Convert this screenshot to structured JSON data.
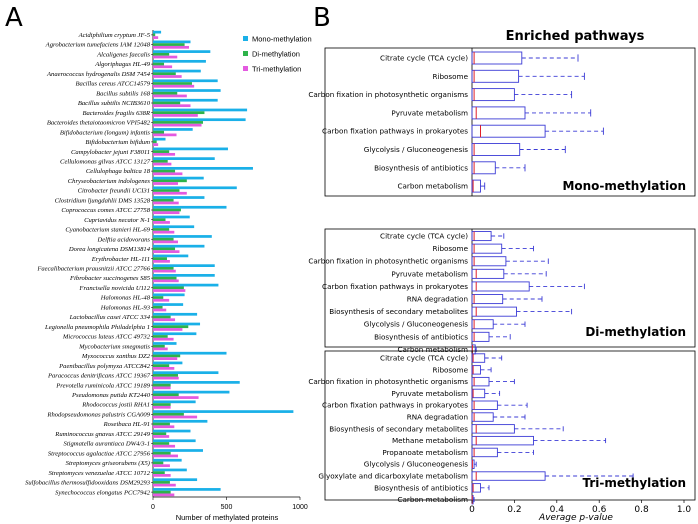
{
  "panel_a_letter": "A",
  "panel_b_letter": "B",
  "colors": {
    "mono": "#1ab0e8",
    "di": "#2eb34a",
    "tri": "#e35ae0",
    "box": "#3b3bd6",
    "median": "#e0202a"
  },
  "chart_data": [
    {
      "type": "bar",
      "orientation": "horizontal",
      "xlabel": "Number of methylated proteins",
      "xlim": [
        0,
        1000
      ],
      "xticks": [
        0,
        500,
        1000
      ],
      "legend": [
        "Mono-methylation",
        "Di-methylation",
        "Tri-methylation"
      ],
      "legend_position": "top-right",
      "categories": [
        "Acidiphilium cryptum JF-5",
        "Agrobacterium tumefaciens IAM 12048",
        "Alcaligenes faecalis",
        "Algoriphagus HL-49",
        "Anaerococcus hydrogenalis DSM 7454",
        "Bacillus cereus ATCC14579",
        "Bacillus subtilis 168",
        "Bacillus subtilis NCIB3610",
        "Bacteroides fragilis 638R",
        "Bacteroides thetaiotaomicron VPI5482",
        "Bifidobacterium (longum) infantis",
        "Bifidobacterium bifidum",
        "Campylobacter jejuni F38011",
        "Cellulomonas gilvus ATCC 13127",
        "Cellulophaga baltica 18",
        "Chryseobacterium indologenes",
        "Citrobacter freundii UCI31",
        "Clostridium ljungdahlii DMS 13528",
        "Coprococcus comes ATCC 27758",
        "Cupriavidus necator N-1",
        "Cyanobacterium stanieri HL-69",
        "Delftia acidovorans",
        "Dorea longicatena DSM13814",
        "Erythrobacter HL-111",
        "Faecalibacterium prausnitzii ATCC 27766",
        "Fibrobacter succinogenes S85",
        "Francisella novicida U112",
        "Halomonas HL-48",
        "Halomonas HL-93",
        "Lactobacillus casei ATCC 334",
        "Legionella pneumophila Philadelphia 1",
        "Micrococcus luteus ATCC 49732",
        "Mycobacterium smegmatis",
        "Myxococcus xanthus DZ2",
        "Paenibacillus polymyxa ATCC842",
        "Paracoccus denitrificans ATCC 19367",
        "Prevotella ruminicola ATCC 19189",
        "Pseudomonas putida KT2440",
        "Rhodococcus jostii RHA1",
        "Rhodopseudomonas palustris CGA009",
        "Roseibaca HL-91",
        "Ruminococcus gnavus ATCC 29149",
        "Stigmatella aurantiaca DW4/3-1",
        "Streptococcus agalactiae ATCC 27956",
        "Streptomyces griseorubens (X5)",
        "Streptomyces venezuelae ATCC 10712",
        "Sulfobacillus thermosulfidooxidans DSM29293",
        "Synechococcus elongatus PCC7942"
      ],
      "series": [
        {
          "name": "Mono-methylation",
          "values": [
            55,
            255,
            390,
            360,
            325,
            440,
            460,
            440,
            640,
            630,
            270,
            85,
            510,
            420,
            680,
            345,
            570,
            350,
            500,
            250,
            280,
            400,
            350,
            240,
            420,
            420,
            445,
            215,
            205,
            300,
            320,
            295,
            160,
            500,
            200,
            445,
            590,
            520,
            290,
            955,
            370,
            255,
            290,
            340,
            195,
            230,
            300,
            460
          ]
        },
        {
          "name": "Di-methylation",
          "values": [
            15,
            215,
            110,
            75,
            155,
            265,
            165,
            185,
            350,
            340,
            75,
            25,
            110,
            100,
            150,
            230,
            180,
            140,
            190,
            85,
            110,
            140,
            150,
            95,
            140,
            160,
            210,
            70,
            65,
            120,
            240,
            100,
            80,
            185,
            110,
            170,
            120,
            175,
            120,
            210,
            115,
            90,
            110,
            120,
            70,
            80,
            115,
            120
          ]
        },
        {
          "name": "Tri-methylation",
          "values": [
            35,
            245,
            165,
            130,
            195,
            280,
            230,
            255,
            305,
            330,
            160,
            35,
            150,
            125,
            200,
            170,
            230,
            175,
            180,
            115,
            145,
            170,
            180,
            115,
            155,
            175,
            220,
            110,
            90,
            150,
            200,
            140,
            100,
            165,
            145,
            175,
            120,
            310,
            120,
            300,
            145,
            110,
            150,
            170,
            115,
            120,
            155,
            145
          ]
        }
      ]
    },
    {
      "type": "boxplot",
      "title": "Enriched pathways",
      "xlabel": "Average p-value",
      "xlim": [
        0,
        1
      ],
      "xticks": [
        "0",
        "0.2",
        "0.4",
        "0.6",
        "0.8",
        "1.0"
      ],
      "groups": [
        {
          "name": "Mono-methylation",
          "pathways": [
            {
              "label": "Citrate cycle (TCA cycle)",
              "median": 0.01,
              "q1": 0,
              "q3": 0.235,
              "whisker_high": 0.5
            },
            {
              "label": "Ribosome",
              "median": 0.01,
              "q1": 0,
              "q3": 0.22,
              "whisker_high": 0.53
            },
            {
              "label": "Carbon fixation in photosynthetic organisms",
              "median": 0.01,
              "q1": 0,
              "q3": 0.2,
              "whisker_high": 0.47
            },
            {
              "label": "Pyruvate metabolism",
              "median": 0.02,
              "q1": 0,
              "q3": 0.25,
              "whisker_high": 0.56
            },
            {
              "label": "Carbon fixation pathways in prokaryotes",
              "median": 0.04,
              "q1": 0,
              "q3": 0.345,
              "whisker_high": 0.62
            },
            {
              "label": "Glycolysis / Gluconeogenesis",
              "median": 0.01,
              "q1": 0,
              "q3": 0.225,
              "whisker_high": 0.44
            },
            {
              "label": "Biosynthesis of antibiotics",
              "median": 0.01,
              "q1": 0,
              "q3": 0.11,
              "whisker_high": 0.25
            },
            {
              "label": "Carbon metabolism",
              "median": 0.005,
              "q1": 0,
              "q3": 0.04,
              "whisker_high": 0.06
            }
          ]
        },
        {
          "name": "Di-methylation",
          "pathways": [
            {
              "label": "Citrate cycle (TCA cycle)",
              "median": 0.01,
              "q1": 0,
              "q3": 0.09,
              "whisker_high": 0.15
            },
            {
              "label": "Ribosome",
              "median": 0.01,
              "q1": 0,
              "q3": 0.14,
              "whisker_high": 0.29
            },
            {
              "label": "Carbon fixation in photosynthetic organisms",
              "median": 0.01,
              "q1": 0,
              "q3": 0.16,
              "whisker_high": 0.36
            },
            {
              "label": "Pyruvate metabolism",
              "median": 0.02,
              "q1": 0,
              "q3": 0.15,
              "whisker_high": 0.35
            },
            {
              "label": "Carbon fixation pathways in prokaryotes",
              "median": 0.02,
              "q1": 0,
              "q3": 0.27,
              "whisker_high": 0.53
            },
            {
              "label": "RNA degradation",
              "median": 0.01,
              "q1": 0,
              "q3": 0.145,
              "whisker_high": 0.33
            },
            {
              "label": "Biosynthesis of secondary metabolites",
              "median": 0.02,
              "q1": 0,
              "q3": 0.21,
              "whisker_high": 0.47
            },
            {
              "label": "Glycolysis / Gluconeogenesis",
              "median": 0.01,
              "q1": 0,
              "q3": 0.1,
              "whisker_high": 0.25
            },
            {
              "label": "Biosynthesis of antibiotics",
              "median": 0.01,
              "q1": 0,
              "q3": 0.08,
              "whisker_high": 0.18
            },
            {
              "label": "Carbon metabolism",
              "median": 0.002,
              "q1": 0,
              "q3": 0.015,
              "whisker_high": 0.02
            }
          ]
        },
        {
          "name": "Tri-methylation",
          "pathways": [
            {
              "label": "Citrate cycle (TCA cycle)",
              "median": 0.005,
              "q1": 0,
              "q3": 0.06,
              "whisker_high": 0.14
            },
            {
              "label": "Ribosome",
              "median": 0.005,
              "q1": 0,
              "q3": 0.04,
              "whisker_high": 0.09
            },
            {
              "label": "Carbon fixation in photosynthetic organisms",
              "median": 0.01,
              "q1": 0,
              "q3": 0.08,
              "whisker_high": 0.2
            },
            {
              "label": "Pyruvate metabolism",
              "median": 0.005,
              "q1": 0,
              "q3": 0.06,
              "whisker_high": 0.13
            },
            {
              "label": "Carbon fixation pathways in prokaryotes",
              "median": 0.01,
              "q1": 0,
              "q3": 0.12,
              "whisker_high": 0.26
            },
            {
              "label": "RNA degradation",
              "median": 0.01,
              "q1": 0,
              "q3": 0.1,
              "whisker_high": 0.25
            },
            {
              "label": "Biosynthesis of secondary metabolites",
              "median": 0.02,
              "q1": 0,
              "q3": 0.2,
              "whisker_high": 0.43
            },
            {
              "label": "Methane metabolism",
              "median": 0.02,
              "q1": 0,
              "q3": 0.29,
              "whisker_high": 0.63
            },
            {
              "label": "Propanoate metabolism",
              "median": 0.01,
              "q1": 0,
              "q3": 0.12,
              "whisker_high": 0.29
            },
            {
              "label": "Glycolysis / Gluconeogenesis",
              "median": 0.002,
              "q1": 0,
              "q3": 0.01,
              "whisker_high": 0.02
            },
            {
              "label": "Glyoxylate and dicarboxylate metabolism",
              "median": 0.02,
              "q1": 0,
              "q3": 0.345,
              "whisker_high": 0.76
            },
            {
              "label": "Biosynthesis of antibiotics",
              "median": 0.005,
              "q1": 0,
              "q3": 0.04,
              "whisker_high": 0.08
            },
            {
              "label": "Carbon metabolism",
              "median": 0.001,
              "q1": 0,
              "q3": 0.005,
              "whisker_high": 0.01
            }
          ]
        }
      ]
    }
  ]
}
